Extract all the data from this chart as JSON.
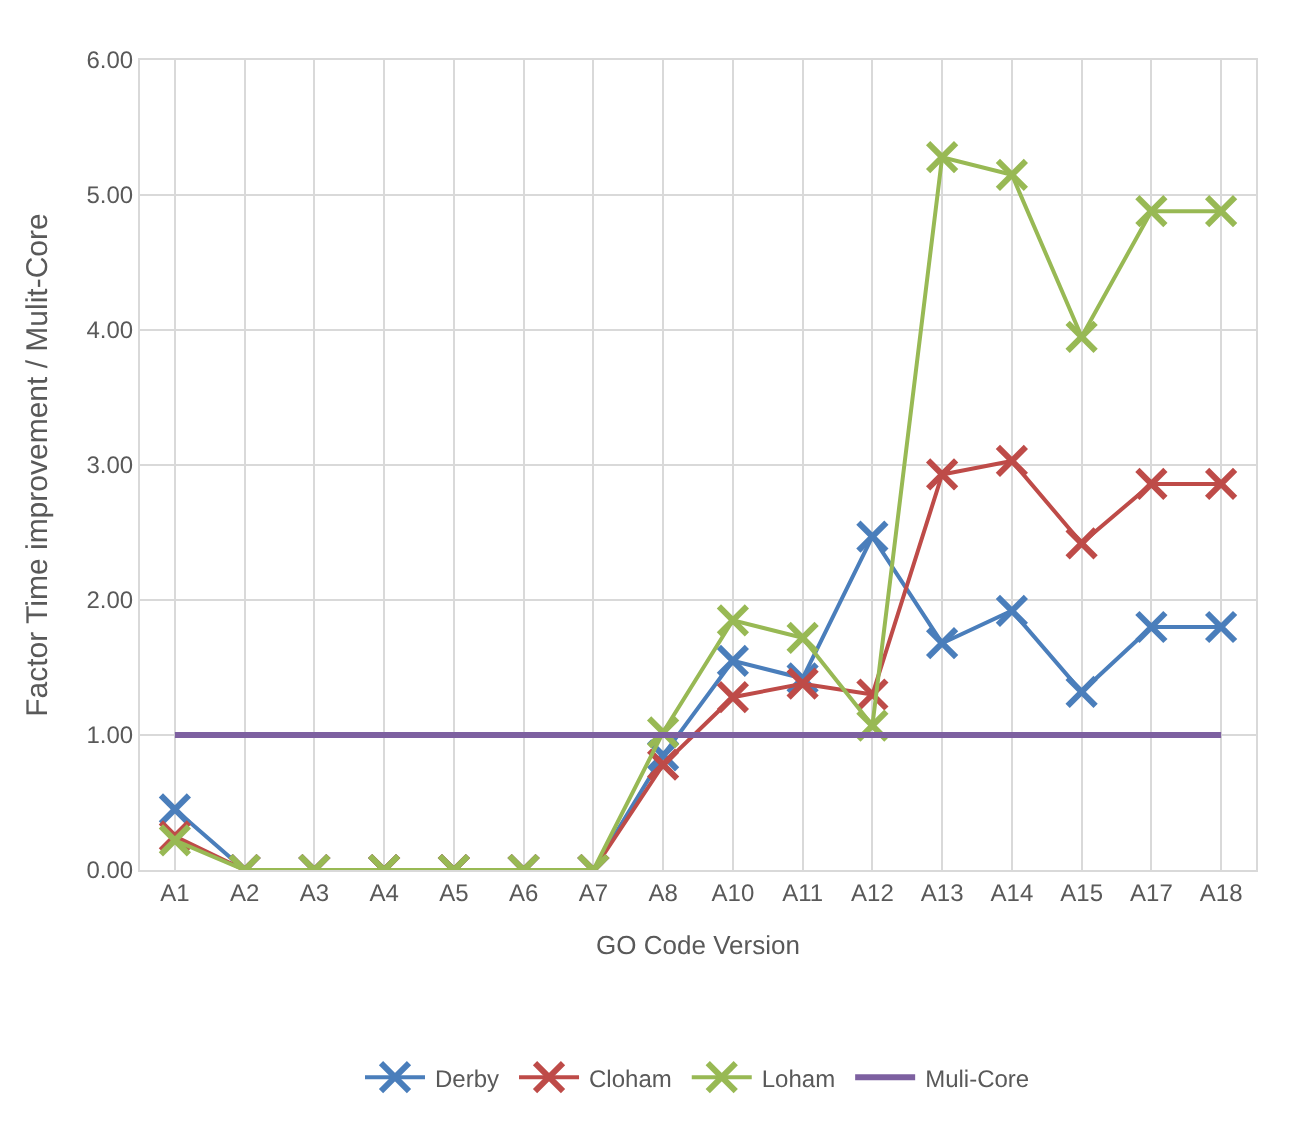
{
  "chart_data": {
    "type": "line",
    "xlabel": "GO Code Version",
    "ylabel": "Factor Time improvement / Mulit-Core",
    "categories": [
      "A1",
      "A2",
      "A3",
      "A4",
      "A5",
      "A6",
      "A7",
      "A8",
      "A10",
      "A11",
      "A12",
      "A13",
      "A14",
      "A15",
      "A17",
      "A18"
    ],
    "series": [
      {
        "name": "Derby",
        "color": "#4a7ebb",
        "marker": "cross",
        "values": [
          0.45,
          0,
          0,
          0,
          0,
          0,
          0,
          0.85,
          1.55,
          1.42,
          2.47,
          1.68,
          1.92,
          1.32,
          1.8,
          1.8
        ]
      },
      {
        "name": "Cloham",
        "color": "#be4b48",
        "marker": "cross",
        "values": [
          0.25,
          0,
          0,
          0,
          0,
          0,
          0,
          0.78,
          1.28,
          1.38,
          1.3,
          2.93,
          3.03,
          2.42,
          2.86,
          2.86
        ]
      },
      {
        "name": "Loham",
        "color": "#98b954",
        "marker": "cross",
        "values": [
          0.22,
          0,
          0,
          0,
          0,
          0,
          0,
          1.02,
          1.85,
          1.72,
          1.07,
          5.28,
          5.15,
          3.95,
          4.88,
          4.88
        ]
      },
      {
        "name": "Muli-Core",
        "color": "#7d60a0",
        "marker": "none",
        "values": [
          1,
          1,
          1,
          1,
          1,
          1,
          1,
          1,
          1,
          1,
          1,
          1,
          1,
          1,
          1,
          1
        ]
      }
    ],
    "ylim": [
      0,
      6
    ],
    "yticks": [
      {
        "value": 0,
        "label": "0.00"
      },
      {
        "value": 1,
        "label": "1.00"
      },
      {
        "value": 2,
        "label": "2.00"
      },
      {
        "value": 3,
        "label": "3.00"
      },
      {
        "value": 4,
        "label": "4.00"
      },
      {
        "value": 5,
        "label": "5.00"
      },
      {
        "value": 6,
        "label": "6.00"
      }
    ],
    "grid": true,
    "legend": "bottom"
  }
}
